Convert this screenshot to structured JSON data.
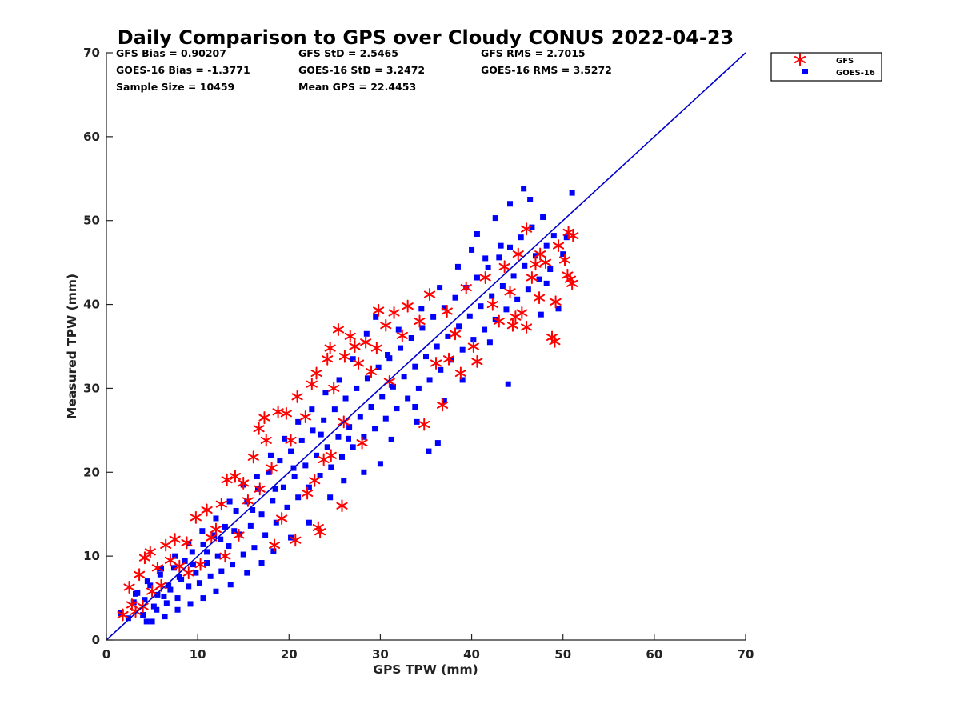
{
  "chart_data": {
    "type": "scatter",
    "title": "Daily Comparison to GPS over Cloudy CONUS 2022-04-23",
    "xlabel": "GPS TPW (mm)",
    "ylabel": "Measured TPW (mm)",
    "xlim": [
      0,
      70
    ],
    "ylim": [
      0,
      70
    ],
    "xticks": [
      "0",
      "10",
      "20",
      "30",
      "40",
      "50",
      "60",
      "70"
    ],
    "yticks": [
      "0",
      "10",
      "20",
      "30",
      "40",
      "50",
      "60",
      "70"
    ],
    "grid": false,
    "legend_position": "outside top-right",
    "stats": [
      "GFS Bias = 0.90207",
      "GOES-16 Bias = -1.3771",
      "Sample Size = 10459",
      "GFS StD = 2.5465",
      "GOES-16 StD = 3.2472",
      "Mean GPS = 22.4453",
      "GFS RMS = 2.7015",
      "GOES-16 RMS = 3.5272"
    ],
    "reference_line": {
      "x": [
        0,
        70
      ],
      "y": [
        0,
        70
      ],
      "color": "#0000cc"
    },
    "series": [
      {
        "name": "GFS",
        "marker": "asterisk",
        "color": "#ff0000",
        "points": [
          [
            1.8,
            3.0
          ],
          [
            2.5,
            6.3
          ],
          [
            2.8,
            4.2
          ],
          [
            3.6,
            7.8
          ],
          [
            4.2,
            9.8
          ],
          [
            4.8,
            10.5
          ],
          [
            5.6,
            8.6
          ],
          [
            6.5,
            11.3
          ],
          [
            7.5,
            12.0
          ],
          [
            8.8,
            11.6
          ],
          [
            9.8,
            14.6
          ],
          [
            11.0,
            15.5
          ],
          [
            12.0,
            13.2
          ],
          [
            12.6,
            16.2
          ],
          [
            13.2,
            19.1
          ],
          [
            14.1,
            19.5
          ],
          [
            15.0,
            18.7
          ],
          [
            16.1,
            21.8
          ],
          [
            16.7,
            25.2
          ],
          [
            17.3,
            26.5
          ],
          [
            17.5,
            23.8
          ],
          [
            18.4,
            11.3
          ],
          [
            18.8,
            27.2
          ],
          [
            19.2,
            14.5
          ],
          [
            19.7,
            27.0
          ],
          [
            20.7,
            11.9
          ],
          [
            20.9,
            29.0
          ],
          [
            21.8,
            26.6
          ],
          [
            22.0,
            17.5
          ],
          [
            22.5,
            30.5
          ],
          [
            23.0,
            31.8
          ],
          [
            23.2,
            13.4
          ],
          [
            23.4,
            12.9
          ],
          [
            23.8,
            21.5
          ],
          [
            24.2,
            33.5
          ],
          [
            24.5,
            34.8
          ],
          [
            24.9,
            30.0
          ],
          [
            25.4,
            37.0
          ],
          [
            25.8,
            16.0
          ],
          [
            26.1,
            33.8
          ],
          [
            26.7,
            36.2
          ],
          [
            27.2,
            35.0
          ],
          [
            27.6,
            33.0
          ],
          [
            28.4,
            35.5
          ],
          [
            29.0,
            32.0
          ],
          [
            29.6,
            34.8
          ],
          [
            29.8,
            39.3
          ],
          [
            30.6,
            37.5
          ],
          [
            31.5,
            39.0
          ],
          [
            32.4,
            36.3
          ],
          [
            33.0,
            39.8
          ],
          [
            34.3,
            38.0
          ],
          [
            34.8,
            25.7
          ],
          [
            35.4,
            41.2
          ],
          [
            36.1,
            33.0
          ],
          [
            36.8,
            28.0
          ],
          [
            37.3,
            39.2
          ],
          [
            38.2,
            36.5
          ],
          [
            38.8,
            31.8
          ],
          [
            39.4,
            42.0
          ],
          [
            40.2,
            35.0
          ],
          [
            40.6,
            33.2
          ],
          [
            41.5,
            43.2
          ],
          [
            42.3,
            40.0
          ],
          [
            43.0,
            38.0
          ],
          [
            43.6,
            44.5
          ],
          [
            44.2,
            41.5
          ],
          [
            44.5,
            37.5
          ],
          [
            45.1,
            46.0
          ],
          [
            45.5,
            39.0
          ],
          [
            46.0,
            49.0
          ],
          [
            46.0,
            37.3
          ],
          [
            46.6,
            43.2
          ],
          [
            47.0,
            44.8
          ],
          [
            47.4,
            40.8
          ],
          [
            48.1,
            45.0
          ],
          [
            48.8,
            36.1
          ],
          [
            49.1,
            35.6
          ],
          [
            49.2,
            40.3
          ],
          [
            49.5,
            47.0
          ],
          [
            50.2,
            45.3
          ],
          [
            50.6,
            48.6
          ],
          [
            50.8,
            43.0
          ],
          [
            51.0,
            42.5
          ],
          [
            51.1,
            48.2
          ],
          [
            50.5,
            43.5
          ],
          [
            47.5,
            46.0
          ],
          [
            44.8,
            38.5
          ],
          [
            37.5,
            33.5
          ],
          [
            31.0,
            30.8
          ],
          [
            28.0,
            23.5
          ],
          [
            26.0,
            26.0
          ],
          [
            24.6,
            22.0
          ],
          [
            22.8,
            19.0
          ],
          [
            20.2,
            23.8
          ],
          [
            18.1,
            20.5
          ],
          [
            16.8,
            18.0
          ],
          [
            15.5,
            16.6
          ],
          [
            14.5,
            12.5
          ],
          [
            13.0,
            10.0
          ],
          [
            11.5,
            12.2
          ],
          [
            10.3,
            9.0
          ],
          [
            9.0,
            8.0
          ],
          [
            8.0,
            8.8
          ],
          [
            7.0,
            9.5
          ],
          [
            6.0,
            6.5
          ],
          [
            5.0,
            5.8
          ],
          [
            4.0,
            4.0
          ],
          [
            3.2,
            3.4
          ]
        ]
      },
      {
        "name": "GOES-16",
        "marker": "square",
        "color": "#0000ff",
        "points": [
          [
            1.6,
            3.2
          ],
          [
            2.4,
            2.6
          ],
          [
            3.0,
            4.5
          ],
          [
            3.4,
            5.6
          ],
          [
            4.0,
            3.0
          ],
          [
            4.4,
            2.2
          ],
          [
            4.8,
            6.5
          ],
          [
            5.2,
            4.0
          ],
          [
            5.5,
            3.6
          ],
          [
            5.9,
            7.8
          ],
          [
            6.3,
            5.2
          ],
          [
            6.6,
            4.4
          ],
          [
            7.0,
            6.0
          ],
          [
            7.4,
            8.6
          ],
          [
            7.8,
            5.0
          ],
          [
            8.2,
            7.2
          ],
          [
            8.6,
            9.4
          ],
          [
            9.0,
            6.4
          ],
          [
            9.4,
            10.5
          ],
          [
            9.8,
            8.0
          ],
          [
            10.2,
            6.8
          ],
          [
            10.6,
            11.4
          ],
          [
            11.0,
            9.2
          ],
          [
            11.4,
            7.6
          ],
          [
            11.8,
            12.5
          ],
          [
            12.2,
            10.0
          ],
          [
            12.6,
            8.2
          ],
          [
            13.0,
            13.5
          ],
          [
            13.4,
            11.2
          ],
          [
            13.8,
            9.0
          ],
          [
            14.2,
            15.4
          ],
          [
            14.6,
            12.6
          ],
          [
            15.0,
            10.2
          ],
          [
            15.4,
            16.5
          ],
          [
            15.8,
            13.6
          ],
          [
            16.2,
            11.0
          ],
          [
            16.6,
            18.0
          ],
          [
            17.0,
            15.0
          ],
          [
            17.4,
            12.5
          ],
          [
            17.8,
            20.0
          ],
          [
            18.2,
            16.6
          ],
          [
            18.6,
            14.0
          ],
          [
            19.0,
            21.4
          ],
          [
            19.4,
            18.2
          ],
          [
            19.8,
            15.8
          ],
          [
            20.2,
            22.5
          ],
          [
            20.6,
            19.5
          ],
          [
            21.0,
            17.0
          ],
          [
            21.4,
            23.8
          ],
          [
            21.8,
            20.8
          ],
          [
            22.2,
            18.2
          ],
          [
            22.6,
            25.0
          ],
          [
            23.0,
            22.0
          ],
          [
            23.4,
            19.6
          ],
          [
            23.8,
            26.2
          ],
          [
            24.2,
            23.0
          ],
          [
            24.6,
            20.6
          ],
          [
            25.0,
            27.5
          ],
          [
            25.4,
            24.2
          ],
          [
            25.8,
            21.8
          ],
          [
            26.2,
            28.8
          ],
          [
            26.6,
            25.4
          ],
          [
            27.0,
            23.0
          ],
          [
            27.4,
            30.0
          ],
          [
            27.8,
            26.6
          ],
          [
            28.2,
            24.2
          ],
          [
            28.6,
            31.2
          ],
          [
            29.0,
            27.8
          ],
          [
            29.4,
            25.2
          ],
          [
            29.8,
            32.5
          ],
          [
            30.2,
            29.0
          ],
          [
            30.6,
            26.4
          ],
          [
            31.0,
            33.6
          ],
          [
            31.4,
            30.2
          ],
          [
            31.8,
            27.6
          ],
          [
            32.2,
            34.8
          ],
          [
            32.6,
            31.4
          ],
          [
            33.0,
            28.8
          ],
          [
            33.4,
            36.0
          ],
          [
            33.8,
            32.6
          ],
          [
            34.2,
            30.0
          ],
          [
            34.6,
            37.2
          ],
          [
            35.0,
            33.8
          ],
          [
            35.4,
            31.0
          ],
          [
            35.8,
            38.5
          ],
          [
            36.2,
            35.0
          ],
          [
            36.6,
            32.2
          ],
          [
            37.0,
            39.6
          ],
          [
            37.4,
            36.2
          ],
          [
            37.8,
            33.4
          ],
          [
            38.2,
            40.8
          ],
          [
            38.6,
            37.4
          ],
          [
            39.0,
            34.6
          ],
          [
            39.4,
            42.0
          ],
          [
            39.8,
            38.6
          ],
          [
            40.2,
            35.8
          ],
          [
            40.6,
            43.2
          ],
          [
            41.0,
            39.8
          ],
          [
            41.4,
            37.0
          ],
          [
            41.8,
            44.4
          ],
          [
            42.2,
            41.0
          ],
          [
            42.6,
            38.2
          ],
          [
            43.0,
            45.6
          ],
          [
            43.4,
            42.2
          ],
          [
            43.8,
            39.4
          ],
          [
            44.2,
            46.8
          ],
          [
            44.6,
            43.4
          ],
          [
            45.0,
            40.6
          ],
          [
            45.4,
            48.0
          ],
          [
            45.8,
            44.6
          ],
          [
            46.2,
            41.8
          ],
          [
            46.6,
            49.2
          ],
          [
            47.0,
            45.8
          ],
          [
            47.4,
            43.0
          ],
          [
            47.8,
            50.4
          ],
          [
            48.2,
            47.0
          ],
          [
            48.6,
            44.2
          ],
          [
            49.0,
            48.2
          ],
          [
            49.5,
            39.5
          ],
          [
            50.0,
            46.0
          ],
          [
            50.4,
            48.0
          ],
          [
            51.0,
            53.3
          ],
          [
            45.7,
            53.8
          ],
          [
            46.4,
            52.5
          ],
          [
            44.2,
            52.0
          ],
          [
            42.6,
            50.3
          ],
          [
            40.6,
            48.4
          ],
          [
            36.3,
            23.5
          ],
          [
            35.3,
            22.5
          ],
          [
            33.8,
            27.8
          ],
          [
            31.2,
            23.9
          ],
          [
            28.2,
            20.0
          ],
          [
            26.0,
            19.0
          ],
          [
            24.5,
            17.0
          ],
          [
            22.2,
            14.0
          ],
          [
            20.2,
            12.2
          ],
          [
            18.3,
            10.6
          ],
          [
            17.0,
            9.2
          ],
          [
            15.4,
            8.0
          ],
          [
            13.6,
            6.6
          ],
          [
            12.0,
            5.8
          ],
          [
            10.6,
            5.0
          ],
          [
            9.2,
            4.3
          ],
          [
            7.8,
            3.6
          ],
          [
            6.4,
            2.8
          ],
          [
            5.0,
            2.2
          ],
          [
            48.2,
            42.5
          ],
          [
            47.6,
            38.8
          ],
          [
            44.0,
            30.5
          ],
          [
            42.0,
            35.5
          ],
          [
            39.0,
            31.0
          ],
          [
            37.0,
            28.5
          ],
          [
            34.0,
            26.0
          ],
          [
            30.0,
            21.0
          ],
          [
            29.5,
            38.5
          ],
          [
            28.5,
            36.5
          ],
          [
            27.0,
            33.5
          ],
          [
            25.5,
            31.0
          ],
          [
            24.0,
            29.5
          ],
          [
            22.5,
            27.5
          ],
          [
            21.0,
            26.0
          ],
          [
            19.5,
            24.0
          ],
          [
            18.0,
            22.0
          ],
          [
            16.5,
            19.5
          ],
          [
            15.0,
            18.5
          ],
          [
            13.5,
            16.5
          ],
          [
            12.0,
            14.5
          ],
          [
            10.5,
            13.0
          ],
          [
            9.0,
            11.5
          ],
          [
            7.5,
            10.0
          ],
          [
            6.0,
            8.5
          ],
          [
            4.5,
            7.0
          ],
          [
            3.2,
            5.5
          ],
          [
            30.8,
            34.0
          ],
          [
            32.0,
            37.0
          ],
          [
            34.5,
            39.5
          ],
          [
            36.5,
            42.0
          ],
          [
            38.5,
            44.5
          ],
          [
            40.0,
            46.5
          ],
          [
            41.5,
            45.5
          ],
          [
            43.2,
            47.0
          ],
          [
            26.5,
            24.0
          ],
          [
            23.5,
            24.5
          ],
          [
            20.5,
            20.5
          ],
          [
            18.5,
            18.0
          ],
          [
            16.0,
            15.5
          ],
          [
            14.0,
            13.0
          ],
          [
            12.5,
            12.0
          ],
          [
            11.0,
            10.5
          ],
          [
            9.5,
            9.0
          ],
          [
            8.0,
            7.5
          ],
          [
            6.8,
            6.5
          ],
          [
            5.6,
            5.4
          ],
          [
            4.2,
            4.8
          ]
        ]
      }
    ]
  }
}
